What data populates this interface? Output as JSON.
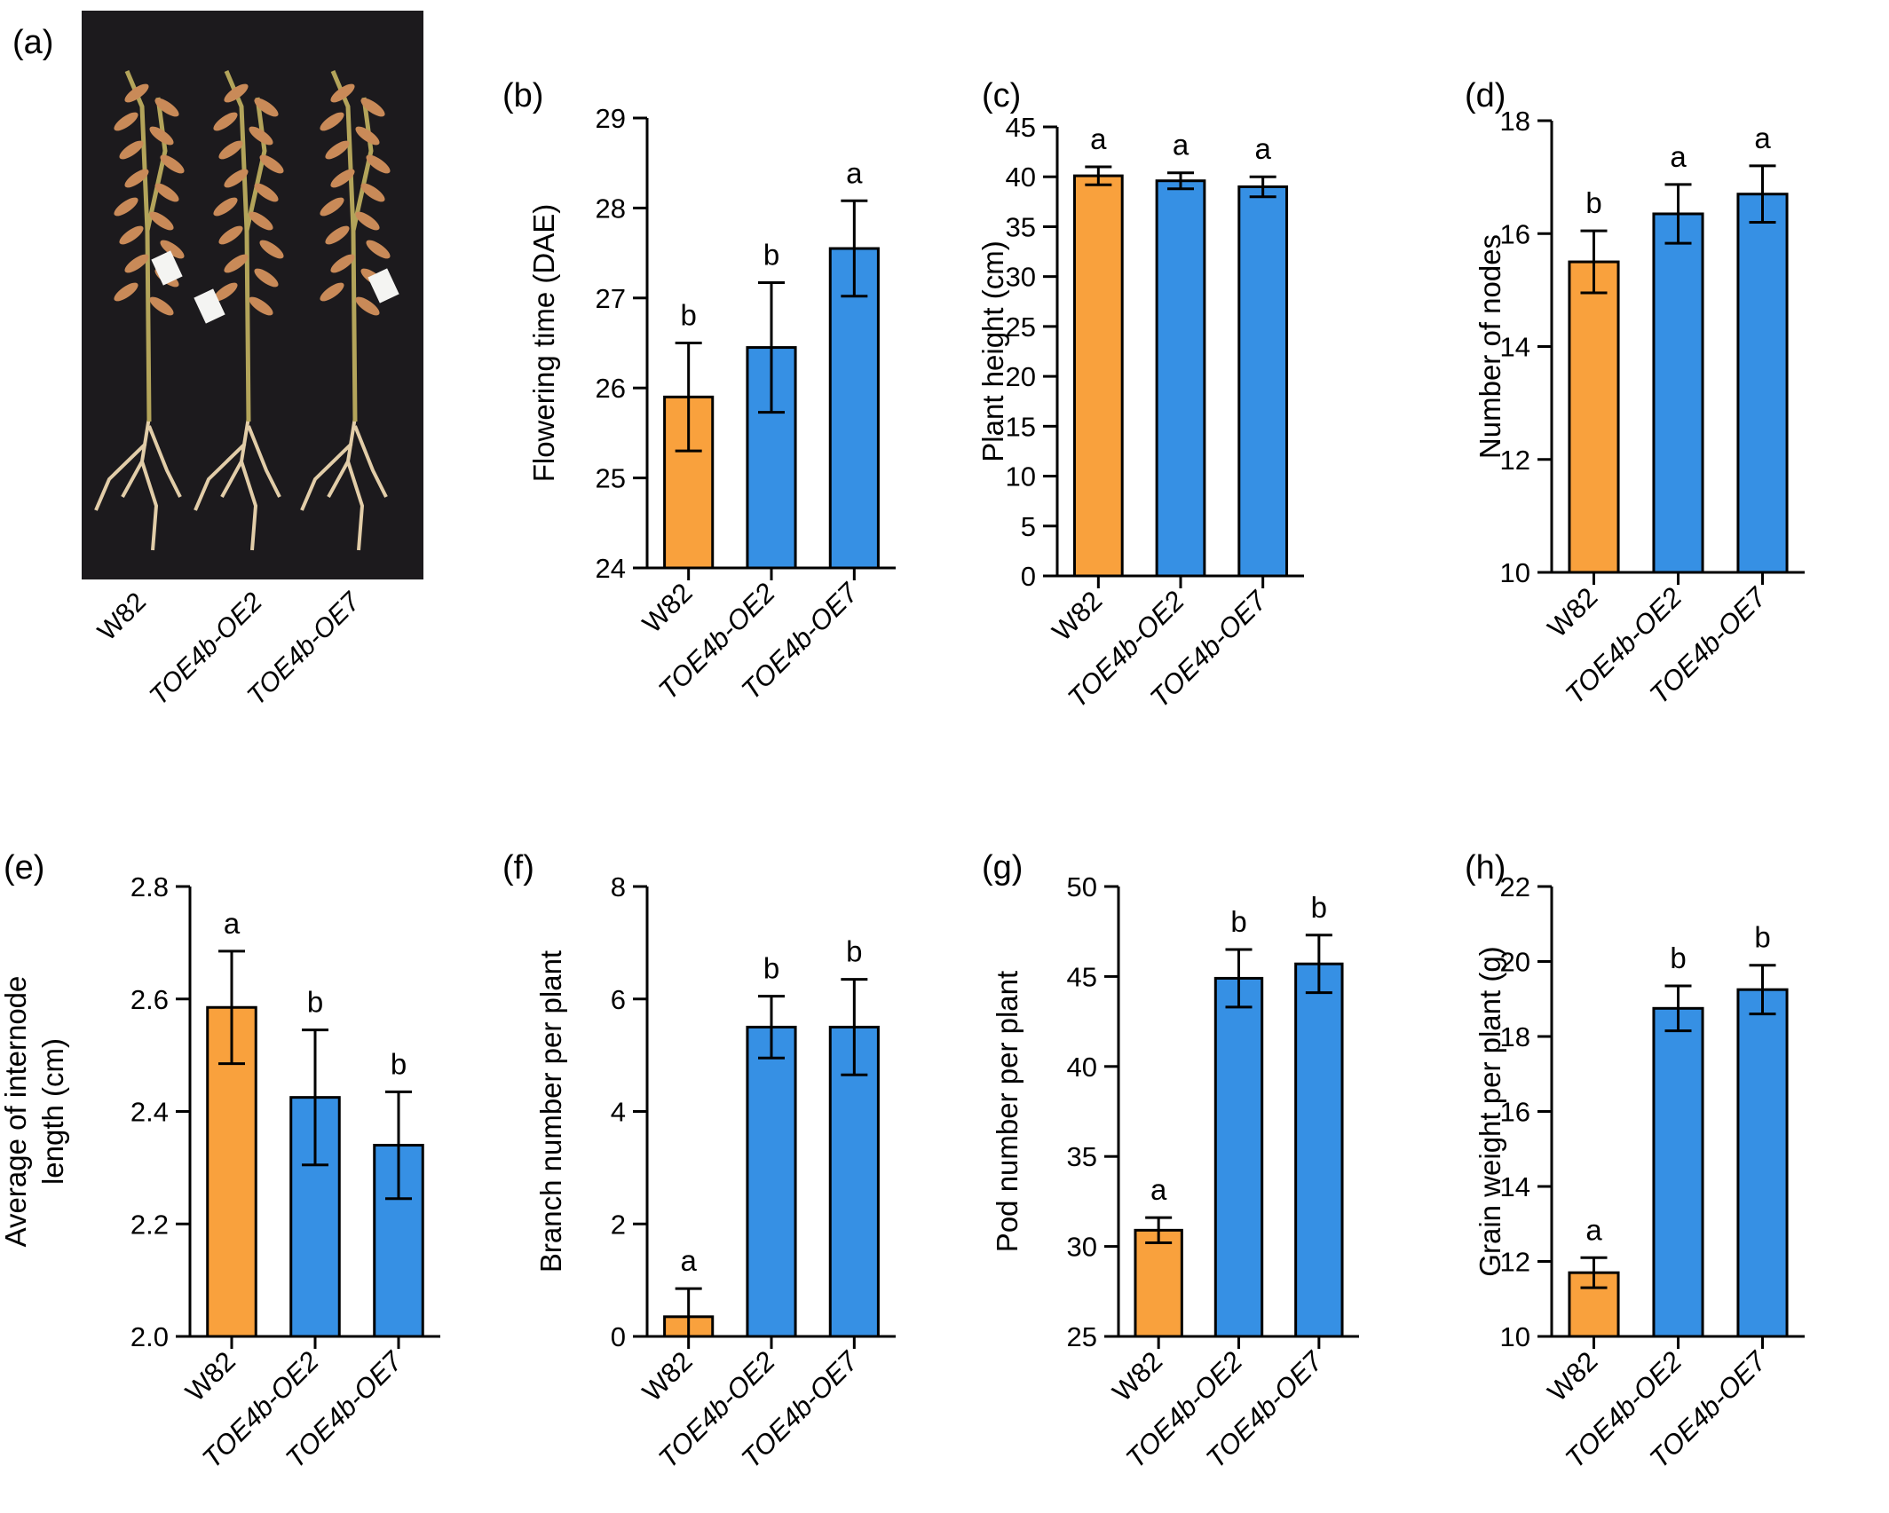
{
  "colors": {
    "control": "#F9A13D",
    "overexpression": "#3690E4",
    "axis": "#000000",
    "photo_bg": "#1c1a1d",
    "pod": "#c98a58",
    "stem": "#b3a45a",
    "root": "#e2cda8",
    "tag": "#f4f4f2"
  },
  "photo": {
    "panel_label": "(a)",
    "labels": [
      "W82",
      "TOE4b-OE2",
      "TOE4b-OE7"
    ]
  },
  "chart_data": [
    {
      "panel": "(b)",
      "type": "bar",
      "ylabel": "Flowering time (DAE)",
      "categories": [
        "W82",
        "TOE4b-OE2",
        "TOE4b-OE7"
      ],
      "values": [
        25.9,
        26.45,
        27.55
      ],
      "errors": [
        0.6,
        0.72,
        0.53
      ],
      "letters": [
        "b",
        "b",
        "a"
      ],
      "ylim": [
        24,
        29
      ],
      "ticks": [
        24,
        25,
        26,
        27,
        28,
        29
      ]
    },
    {
      "panel": "(c)",
      "type": "bar",
      "ylabel": "Plant height (cm)",
      "categories": [
        "W82",
        "TOE4b-OE2",
        "TOE4b-OE7"
      ],
      "values": [
        40.1,
        39.6,
        39.0
      ],
      "errors": [
        0.9,
        0.8,
        1.0
      ],
      "letters": [
        "a",
        "a",
        "a"
      ],
      "ylim": [
        0,
        45
      ],
      "ticks": [
        0,
        5,
        10,
        15,
        20,
        25,
        30,
        35,
        40,
        45
      ]
    },
    {
      "panel": "(d)",
      "type": "bar",
      "ylabel": "Number of nodes",
      "categories": [
        "W82",
        "TOE4b-OE2",
        "TOE4b-OE7"
      ],
      "values": [
        15.5,
        16.35,
        16.7
      ],
      "errors": [
        0.55,
        0.52,
        0.5
      ],
      "letters": [
        "b",
        "a",
        "a"
      ],
      "ylim": [
        10,
        18
      ],
      "ticks": [
        10,
        12,
        14,
        16,
        18
      ]
    },
    {
      "panel": "(e)",
      "type": "bar",
      "ylabel": [
        "Average of internode",
        "length (cm)"
      ],
      "categories": [
        "W82",
        "TOE4b-OE2",
        "TOE4b-OE7"
      ],
      "values": [
        2.585,
        2.425,
        2.34
      ],
      "errors": [
        0.1,
        0.12,
        0.095
      ],
      "letters": [
        "a",
        "b",
        "b"
      ],
      "ylim": [
        2.0,
        2.8
      ],
      "ticks": [
        "2.0",
        "2.2",
        "2.4",
        "2.6",
        "2.8"
      ]
    },
    {
      "panel": "(f)",
      "type": "bar",
      "ylabel": "Branch number per plant",
      "categories": [
        "W82",
        "TOE4b-OE2",
        "TOE4b-OE7"
      ],
      "values": [
        0.35,
        5.5,
        5.5
      ],
      "errors": [
        0.5,
        0.55,
        0.85
      ],
      "letters": [
        "a",
        "b",
        "b"
      ],
      "ylim": [
        0,
        8
      ],
      "ticks": [
        0,
        2,
        4,
        6,
        8
      ]
    },
    {
      "panel": "(g)",
      "type": "bar",
      "ylabel": "Pod number per plant",
      "categories": [
        "W82",
        "TOE4b-OE2",
        "TOE4b-OE7"
      ],
      "values": [
        30.9,
        44.9,
        45.7
      ],
      "errors": [
        0.7,
        1.6,
        1.6
      ],
      "letters": [
        "a",
        "b",
        "b"
      ],
      "ylim": [
        25,
        50
      ],
      "ticks": [
        25,
        30,
        35,
        40,
        45,
        50
      ]
    },
    {
      "panel": "(h)",
      "type": "bar",
      "ylabel": "Grain weight per plant (g)",
      "categories": [
        "W82",
        "TOE4b-OE2",
        "TOE4b-OE7"
      ],
      "values": [
        11.7,
        18.75,
        19.25
      ],
      "errors": [
        0.4,
        0.6,
        0.65
      ],
      "letters": [
        "a",
        "b",
        "b"
      ],
      "ylim": [
        10,
        22
      ],
      "ticks": [
        10,
        12,
        14,
        16,
        18,
        20,
        22
      ]
    }
  ]
}
